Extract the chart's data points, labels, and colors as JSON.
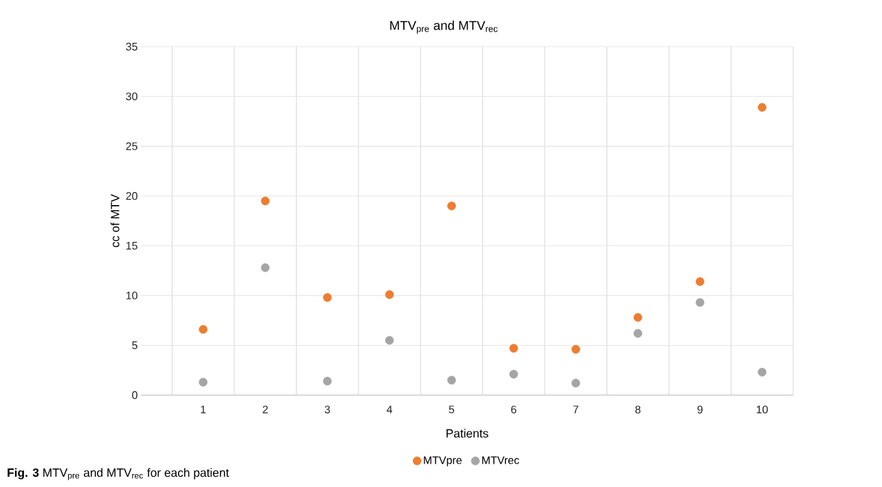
{
  "chart_data": {
    "type": "scatter",
    "title": "MTV$_{pre}$ and MTV$_{rec}$",
    "xlabel": "Patients",
    "ylabel": "cc of MTV",
    "categories": [
      "1",
      "2",
      "3",
      "4",
      "5",
      "6",
      "7",
      "8",
      "9",
      "10"
    ],
    "series": [
      {
        "name": "MTVpre",
        "color": "#ed7d31",
        "values": [
          6.6,
          19.5,
          9.8,
          10.1,
          19.0,
          4.7,
          4.6,
          7.8,
          11.4,
          28.9
        ]
      },
      {
        "name": "MTVrec",
        "color": "#a5a5a5",
        "values": [
          1.3,
          12.8,
          1.4,
          5.5,
          1.5,
          2.1,
          1.2,
          6.2,
          9.3,
          2.3
        ]
      }
    ],
    "ylim": [
      0,
      35
    ],
    "yticks": [
      0,
      5,
      10,
      15,
      20,
      25,
      30,
      35
    ],
    "grid": true,
    "legend": "bottom",
    "marker": "circle",
    "annotations": [
      "**Fig. 3** MTV$_{pre}$ and MTV$_{rec}$ for each patient"
    ]
  }
}
